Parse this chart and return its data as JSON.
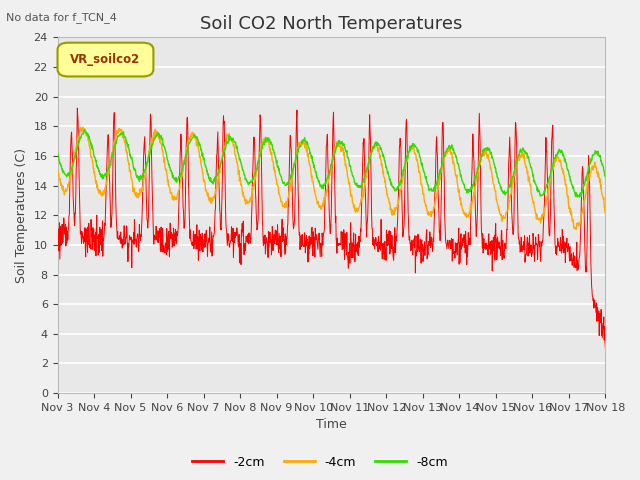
{
  "title": "Soil CO2 North Temperatures",
  "no_data_text": "No data for f_TCN_4",
  "legend_box_text": "VR_soilco2",
  "ylabel": "Soil Temperatures (C)",
  "xlabel": "Time",
  "ylim": [
    0,
    24
  ],
  "yticks": [
    0,
    2,
    4,
    6,
    8,
    10,
    12,
    14,
    16,
    18,
    20,
    22,
    24
  ],
  "xtick_labels": [
    "Nov 3",
    "Nov 4",
    "Nov 5",
    "Nov 6",
    "Nov 7",
    "Nov 8",
    "Nov 9",
    "Nov 10",
    "Nov 11",
    "Nov 12",
    "Nov 13",
    "Nov 14",
    "Nov 15",
    "Nov 16",
    "Nov 17",
    "Nov 18"
  ],
  "line_colors": [
    "#ff0000",
    "#ffaa00",
    "#33dd00"
  ],
  "line_labels": [
    "-2cm",
    "-4cm",
    "-8cm"
  ],
  "fig_bg_color": "#f0f0f0",
  "plot_bg_color": "#e8e8e8",
  "grid_color": "#ffffff",
  "title_fontsize": 13,
  "axis_label_fontsize": 9,
  "tick_fontsize": 8,
  "legend_box_facecolor": "#ffff99",
  "legend_box_edgecolor": "#999900",
  "legend_box_textcolor": "#993300"
}
